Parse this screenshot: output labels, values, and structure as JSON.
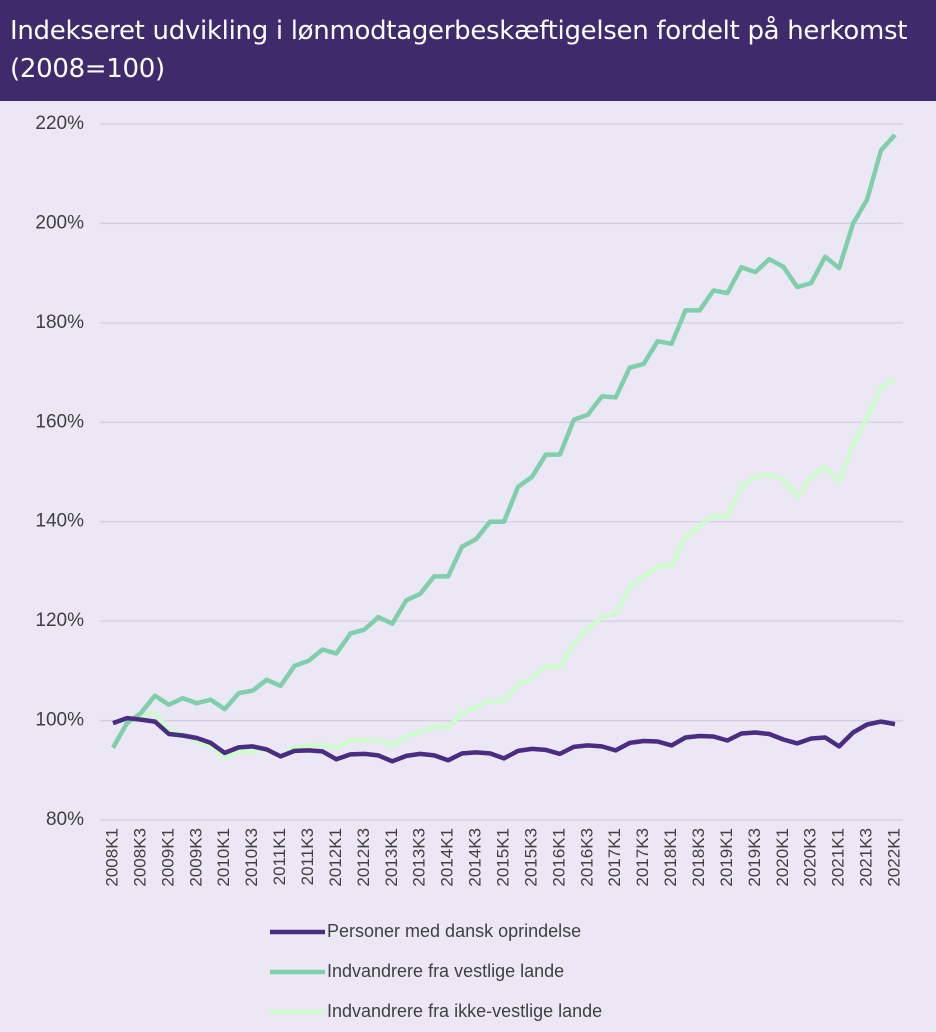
{
  "chart_data": {
    "type": "line",
    "title": "Indekseret udvikling i lønmodtagerbeskæftigelsen fordelt på herkomst (2008=100)",
    "categories": [
      "2008K1",
      null,
      "2008K3",
      null,
      "2009K1",
      null,
      "2009K3",
      null,
      "2010K1",
      null,
      "2010K3",
      null,
      "2011K1",
      null,
      "2011K3",
      null,
      "2012K1",
      null,
      "2012K3",
      null,
      "2013K1",
      null,
      "2013K3",
      null,
      "2014K1",
      null,
      "2014K3",
      null,
      "2015K1",
      null,
      "2015K3",
      null,
      "2016K1",
      null,
      "2016K3",
      null,
      "2017K1",
      null,
      "2017K3",
      null,
      "2018K1",
      null,
      "2018K3",
      null,
      "2019K1",
      null,
      "2019K3",
      null,
      "2020K1",
      null,
      "2020K3",
      null,
      "2021K1",
      null,
      "2021K3",
      null,
      "2022K1"
    ],
    "series": [
      {
        "name": "Personer med dansk oprindelse",
        "color": "#4b2c83",
        "values": [
          99.5,
          100.5,
          100.2,
          99.8,
          97.3,
          97.0,
          96.5,
          95.5,
          93.5,
          94.6,
          94.8,
          94.2,
          92.8,
          93.9,
          94.0,
          93.8,
          92.2,
          93.2,
          93.3,
          93.0,
          91.8,
          92.9,
          93.3,
          93.0,
          92.0,
          93.4,
          93.6,
          93.4,
          92.4,
          93.9,
          94.3,
          94.1,
          93.3,
          94.7,
          95.0,
          94.8,
          94.0,
          95.5,
          95.9,
          95.8,
          95.0,
          96.6,
          96.9,
          96.8,
          96.0,
          97.4,
          97.6,
          97.3,
          96.2,
          95.4,
          96.4,
          96.6,
          94.8,
          97.6,
          99.2,
          99.8,
          99.3
        ]
      },
      {
        "name": "Indvandrere fra vestlige lande",
        "color": "#7fcfab",
        "values": [
          94.5,
          99.5,
          101.5,
          105,
          103.2,
          104.5,
          103.5,
          104.2,
          102.3,
          105.5,
          106,
          108.2,
          107,
          111,
          112,
          114.3,
          113.5,
          117.5,
          118.3,
          120.8,
          119.5,
          124.2,
          125.5,
          129,
          129,
          135,
          136.5,
          140,
          140,
          147,
          149,
          153.5,
          153.5,
          160.5,
          161.5,
          165.2,
          165,
          171,
          171.7,
          176.3,
          175.8,
          182.5,
          182.5,
          186.5,
          186,
          191.2,
          190.2,
          192.8,
          191.3,
          187.2,
          188,
          193.3,
          191,
          200,
          204.8,
          214.7,
          217.8
        ]
      },
      {
        "name": "Indvandrere fra ikke-vestlige lande",
        "color": "#cdfccd",
        "values": [
          95,
          99.5,
          101,
          101.5,
          98,
          97.2,
          95.8,
          94.8,
          92.5,
          93.7,
          93.8,
          94.2,
          92.8,
          94.7,
          95,
          95.1,
          94.6,
          96,
          96.1,
          96,
          95,
          96.8,
          97.8,
          98.8,
          98.6,
          101.5,
          102.8,
          104,
          104,
          107.2,
          108.5,
          111,
          110.8,
          115.5,
          118.5,
          120.8,
          121.5,
          126.8,
          129,
          131,
          131.2,
          136.8,
          139.2,
          141.2,
          141,
          147.2,
          149,
          149.5,
          148.5,
          145,
          149,
          151,
          148,
          155.5,
          161,
          167,
          168.5
        ]
      }
    ],
    "ylim": [
      80,
      220
    ],
    "yticks": [
      {
        "value": 80,
        "label": "80%"
      },
      {
        "value": 100,
        "label": "100%"
      },
      {
        "value": 120,
        "label": "120%"
      },
      {
        "value": 140,
        "label": "140%"
      },
      {
        "value": 160,
        "label": "160%"
      },
      {
        "value": 180,
        "label": "180%"
      },
      {
        "value": 200,
        "label": "200%"
      },
      {
        "value": 220,
        "label": "220%"
      }
    ],
    "grid": true
  }
}
